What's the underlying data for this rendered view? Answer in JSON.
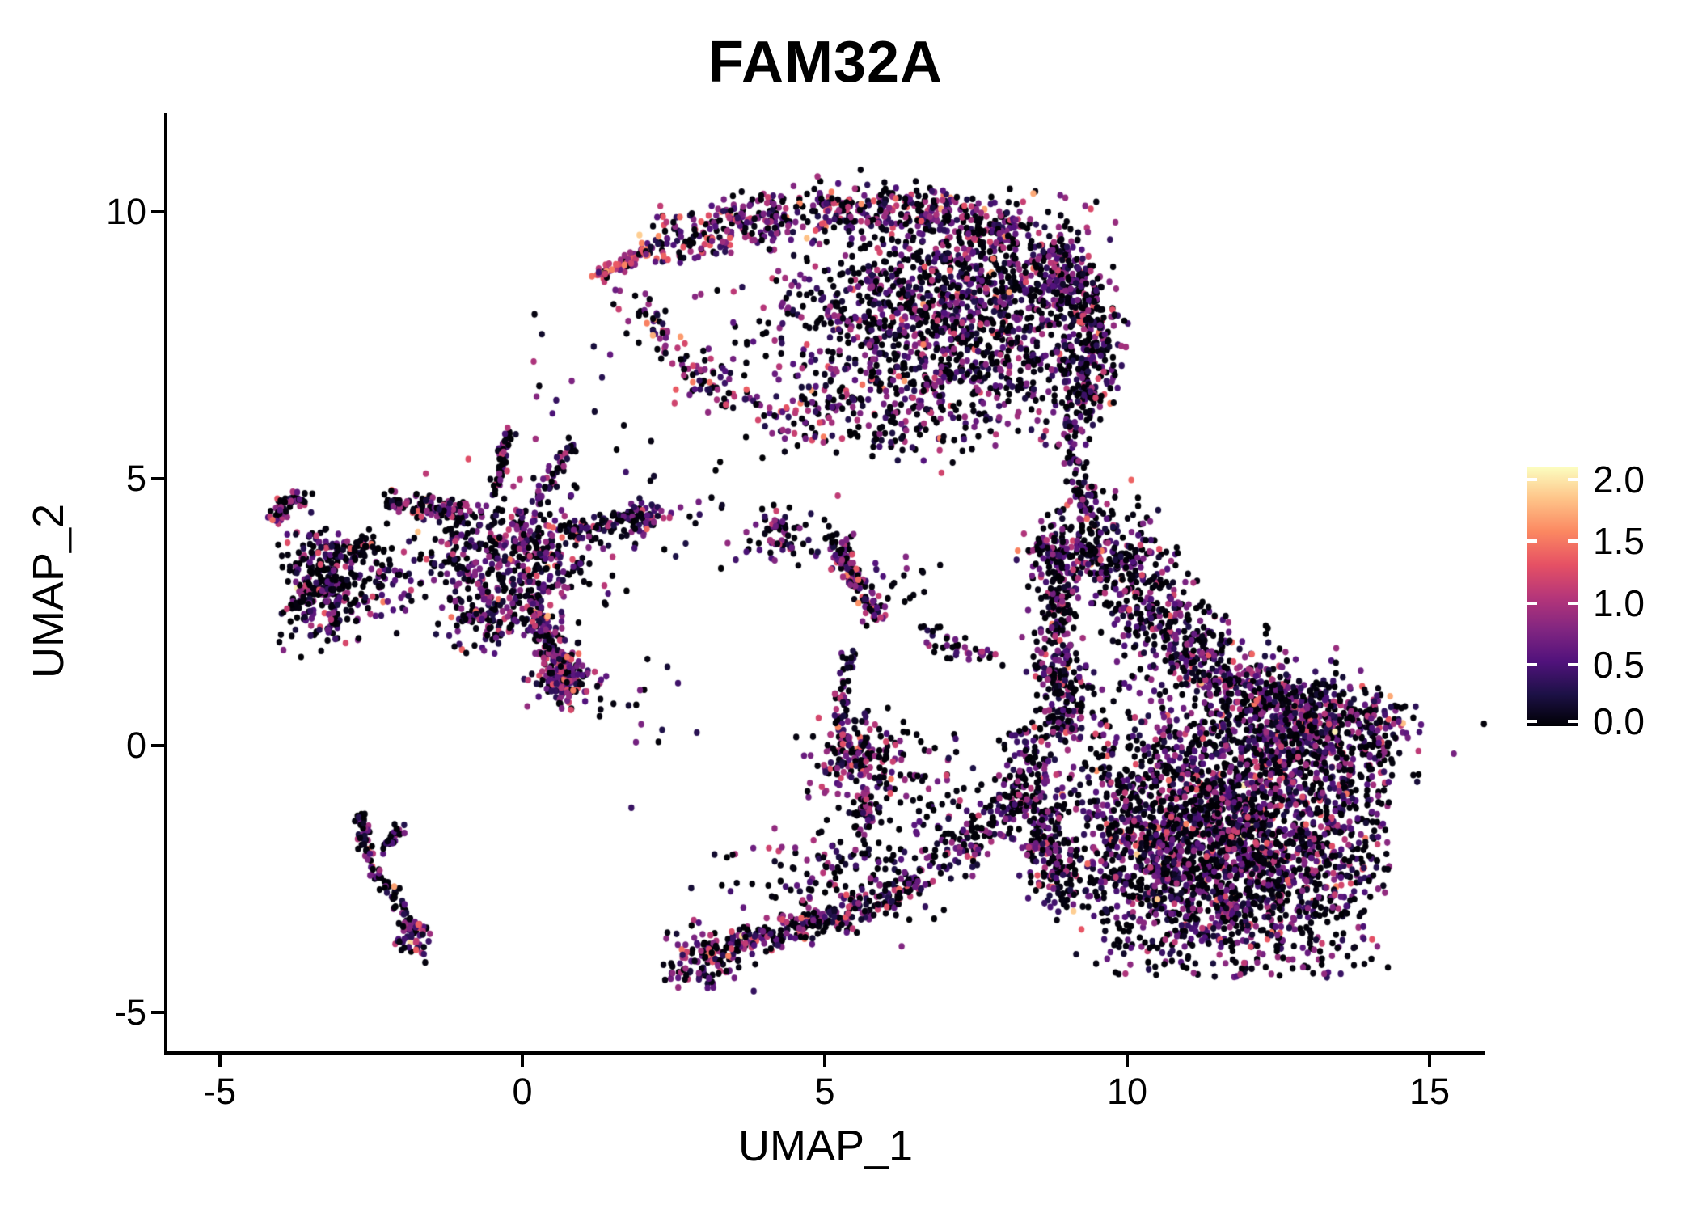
{
  "title": "FAM32A",
  "axes": {
    "x_label": "UMAP_1",
    "y_label": "UMAP_2",
    "x_ticks": [
      {
        "label": "-5",
        "value": -5
      },
      {
        "label": "0",
        "value": 0
      },
      {
        "label": "5",
        "value": 5
      },
      {
        "label": "10",
        "value": 10
      },
      {
        "label": "15",
        "value": 15
      }
    ],
    "y_ticks": [
      {
        "label": "10",
        "value": 10
      },
      {
        "label": "5",
        "value": 5
      },
      {
        "label": "0",
        "value": 0
      },
      {
        "label": "-5",
        "value": -5
      }
    ],
    "axis_color": "#000000",
    "text_color": "#000000",
    "background": "#ffffff"
  },
  "colorbar": {
    "ticks": [
      {
        "label": "2.0",
        "value": 2.0
      },
      {
        "label": "1.5",
        "value": 1.5
      },
      {
        "label": "1.0",
        "value": 1.0
      },
      {
        "label": "0.5",
        "value": 0.5
      },
      {
        "label": "0.0",
        "value": 0.0
      }
    ],
    "value_max": 2.1,
    "palette_name": "magma",
    "stops": [
      [
        0.0,
        "#000004"
      ],
      [
        0.125,
        "#1d1147"
      ],
      [
        0.25,
        "#51127c"
      ],
      [
        0.375,
        "#822681"
      ],
      [
        0.5,
        "#b63679"
      ],
      [
        0.625,
        "#e65164"
      ],
      [
        0.75,
        "#fb8761"
      ],
      [
        0.875,
        "#fec287"
      ],
      [
        1.0,
        "#fcfdbf"
      ]
    ]
  },
  "chart_data": {
    "type": "scatter",
    "title": "FAM32A",
    "xlabel": "UMAP_1",
    "ylabel": "UMAP_2",
    "xlim": [
      -5.9,
      15.9
    ],
    "ylim": [
      -5.8,
      11.8
    ],
    "grid": false,
    "legend_position": "right-colorbar",
    "color_variable": "FAM32A expression",
    "color_range": [
      0.0,
      2.1
    ],
    "point_radius_px": 3.7,
    "seed": 42,
    "clusters": [
      {
        "name": "arc-tip",
        "type": "streak",
        "pts": [
          [
            1.25,
            8.8
          ],
          [
            1.7,
            9.05
          ],
          [
            2.15,
            9.3
          ]
        ],
        "w": 0.13,
        "n": 70,
        "p0": 0.1,
        "mu": 1.15,
        "sg": 0.33,
        "hi": 0.01
      },
      {
        "name": "arc-band",
        "type": "streak",
        "pts": [
          [
            2.15,
            9.3
          ],
          [
            3.4,
            9.75
          ],
          [
            5.2,
            10.05
          ],
          [
            6.8,
            10.05
          ],
          [
            8.2,
            9.55
          ]
        ],
        "w": 0.5,
        "n": 520,
        "p0": 0.33,
        "mu": 0.72,
        "sg": 0.42
      },
      {
        "name": "arc-main",
        "type": "gauss",
        "c": [
          7.25,
          8.1
        ],
        "s": [
          1.35,
          1.15
        ],
        "clip": [
          4.2,
          9.85,
          5.5,
          10.45
        ],
        "n": 1500,
        "p0": 0.4,
        "mu": 0.62,
        "sg": 0.38
      },
      {
        "name": "arc-right-edge",
        "type": "streak",
        "pts": [
          [
            8.6,
            9.4
          ],
          [
            9.3,
            8.4
          ],
          [
            9.55,
            7.2
          ],
          [
            9.2,
            6.2
          ]
        ],
        "w": 0.45,
        "n": 330,
        "p0": 0.42,
        "mu": 0.6,
        "sg": 0.38
      },
      {
        "name": "arc-inner-trail",
        "type": "streak",
        "pts": [
          [
            1.8,
            8.5
          ],
          [
            2.4,
            7.6
          ],
          [
            3.1,
            6.7
          ],
          [
            4.2,
            6.2
          ],
          [
            5.3,
            6.0
          ]
        ],
        "w": 0.42,
        "n": 150,
        "p0": 0.3,
        "mu": 0.8,
        "sg": 0.45
      },
      {
        "name": "arc-hollow-sparse",
        "type": "gauss",
        "c": [
          4.3,
          7.9
        ],
        "s": [
          0.75,
          0.65
        ],
        "n": 55,
        "p0": 0.45,
        "mu": 0.7,
        "sg": 0.4
      },
      {
        "name": "arc-below-sparse",
        "type": "gauss",
        "c": [
          6.4,
          6.3
        ],
        "s": [
          1.0,
          0.5
        ],
        "n": 120,
        "p0": 0.45,
        "mu": 0.6,
        "sg": 0.4
      },
      {
        "name": "right-arm",
        "type": "streak",
        "pts": [
          [
            9.05,
            6.1
          ],
          [
            9.15,
            5.2
          ],
          [
            9.25,
            4.4
          ]
        ],
        "w": 0.18,
        "n": 70,
        "p0": 0.45,
        "mu": 0.55,
        "sg": 0.35
      },
      {
        "name": "right-upper-diag",
        "type": "streak",
        "pts": [
          [
            9.2,
            4.3
          ],
          [
            9.9,
            3.3
          ],
          [
            10.5,
            2.4
          ],
          [
            11.3,
            1.5
          ],
          [
            12.3,
            0.85
          ],
          [
            13.3,
            0.45
          ]
        ],
        "w": 0.8,
        "n": 900,
        "p0": 0.42,
        "mu": 0.6,
        "sg": 0.38
      },
      {
        "name": "right-left-band",
        "type": "streak",
        "pts": [
          [
            8.75,
            4.0
          ],
          [
            8.8,
            2.7
          ],
          [
            8.9,
            1.4
          ],
          [
            9.0,
            0.2
          ]
        ],
        "w": 0.45,
        "n": 380,
        "p0": 0.45,
        "mu": 0.6,
        "sg": 0.38
      },
      {
        "name": "right-core",
        "type": "gauss",
        "c": [
          11.6,
          -1.7
        ],
        "s": [
          1.5,
          1.25
        ],
        "clip": [
          8.8,
          14.35,
          -4.35,
          1.2
        ],
        "n": 2700,
        "p0": 0.44,
        "mu": 0.6,
        "sg": 0.4,
        "hi": 0.002
      },
      {
        "name": "right-ne",
        "type": "gauss",
        "c": [
          13.1,
          0.0
        ],
        "s": [
          0.8,
          0.55
        ],
        "n": 330,
        "p0": 0.45,
        "mu": 0.6,
        "sg": 0.38
      },
      {
        "name": "east-knob",
        "type": "gauss",
        "c": [
          14.1,
          0.45
        ],
        "s": [
          0.3,
          0.3
        ],
        "n": 80,
        "p0": 0.42,
        "mu": 0.65,
        "sg": 0.4
      },
      {
        "name": "west-band",
        "type": "streak",
        "pts": [
          [
            8.45,
            0.3
          ],
          [
            8.4,
            -0.8
          ],
          [
            8.6,
            -1.9
          ],
          [
            8.9,
            -2.9
          ]
        ],
        "w": 0.4,
        "n": 260,
        "p0": 0.45,
        "mu": 0.6,
        "sg": 0.38
      },
      {
        "name": "sw-bridge",
        "type": "streak",
        "pts": [
          [
            6.9,
            -2.1
          ],
          [
            7.7,
            -1.5
          ],
          [
            8.3,
            -0.8
          ]
        ],
        "w": 0.5,
        "n": 160,
        "p0": 0.44,
        "mu": 0.6,
        "sg": 0.38
      },
      {
        "name": "mid-knot",
        "type": "gauss",
        "c": [
          4.35,
          3.95
        ],
        "s": [
          0.3,
          0.22
        ],
        "n": 70,
        "p0": 0.36,
        "mu": 0.62,
        "sg": 0.4
      },
      {
        "name": "mid-streak",
        "type": "streak",
        "pts": [
          [
            5.15,
            3.95
          ],
          [
            5.5,
            3.1
          ],
          [
            5.85,
            2.35
          ]
        ],
        "w": 0.22,
        "n": 130,
        "p0": 0.33,
        "mu": 0.7,
        "sg": 0.4
      },
      {
        "name": "mid-pair",
        "type": "gauss",
        "c": [
          6.1,
          3.1
        ],
        "s": [
          0.4,
          0.3
        ],
        "n": 18,
        "p0": 0.5,
        "mu": 0.55,
        "sg": 0.35
      },
      {
        "name": "chain-arc",
        "type": "streak",
        "pts": [
          [
            6.6,
            2.2
          ],
          [
            7.2,
            1.75
          ],
          [
            7.85,
            1.5
          ]
        ],
        "w": 0.25,
        "n": 40,
        "p0": 0.5,
        "mu": 0.55,
        "sg": 0.35
      },
      {
        "name": "knot-low",
        "type": "gauss",
        "c": [
          5.55,
          -0.2
        ],
        "s": [
          0.33,
          0.38
        ],
        "n": 170,
        "p0": 0.28,
        "mu": 0.75,
        "sg": 0.42,
        "hi": 0.012
      },
      {
        "name": "knot-up-tail",
        "type": "streak",
        "pts": [
          [
            5.25,
            0.4
          ],
          [
            5.3,
            1.1
          ],
          [
            5.45,
            1.7
          ]
        ],
        "w": 0.15,
        "n": 45,
        "p0": 0.45,
        "mu": 0.6,
        "sg": 0.38
      },
      {
        "name": "knot-down-tail",
        "type": "streak",
        "pts": [
          [
            5.6,
            -0.8
          ],
          [
            5.75,
            -1.5
          ]
        ],
        "w": 0.18,
        "n": 40,
        "p0": 0.45,
        "mu": 0.6,
        "sg": 0.38
      },
      {
        "name": "sw-mid-scatter",
        "type": "gauss",
        "c": [
          6.6,
          -0.9
        ],
        "s": [
          0.7,
          0.7
        ],
        "n": 90,
        "p0": 0.5,
        "mu": 0.55,
        "sg": 0.35
      },
      {
        "name": "tail-knot",
        "type": "gauss",
        "c": [
          2.95,
          -4.05
        ],
        "s": [
          0.3,
          0.28
        ],
        "n": 110,
        "p0": 0.33,
        "mu": 0.7,
        "sg": 0.4
      },
      {
        "name": "tail-streak",
        "type": "streak",
        "pts": [
          [
            3.2,
            -3.9
          ],
          [
            4.1,
            -3.55
          ],
          [
            5.0,
            -3.3
          ],
          [
            5.9,
            -2.95
          ],
          [
            6.6,
            -2.45
          ]
        ],
        "w": 0.3,
        "n": 300,
        "p0": 0.38,
        "mu": 0.65,
        "sg": 0.4
      },
      {
        "name": "tail-upper-scatter",
        "type": "gauss",
        "c": [
          5.2,
          -2.35
        ],
        "s": [
          0.8,
          0.5
        ],
        "n": 130,
        "p0": 0.45,
        "mu": 0.6,
        "sg": 0.38
      },
      {
        "name": "ltail-fork-a",
        "type": "streak",
        "pts": [
          [
            -2.72,
            -1.15
          ],
          [
            -2.65,
            -1.75
          ],
          [
            -2.5,
            -2.2
          ]
        ],
        "w": 0.12,
        "n": 45,
        "p0": 0.42,
        "mu": 0.6,
        "sg": 0.38
      },
      {
        "name": "ltail-fork-b",
        "type": "streak",
        "pts": [
          [
            -2.0,
            -1.5
          ],
          [
            -2.35,
            -2.0
          ]
        ],
        "w": 0.1,
        "n": 25,
        "p0": 0.45,
        "mu": 0.6,
        "sg": 0.38
      },
      {
        "name": "ltail-main",
        "type": "streak",
        "pts": [
          [
            -2.45,
            -2.3
          ],
          [
            -2.1,
            -2.9
          ],
          [
            -1.85,
            -3.5
          ]
        ],
        "w": 0.13,
        "n": 55,
        "p0": 0.4,
        "mu": 0.65,
        "sg": 0.38
      },
      {
        "name": "ltail-tip",
        "type": "gauss",
        "c": [
          -1.78,
          -3.62
        ],
        "s": [
          0.16,
          0.18
        ],
        "n": 45,
        "p0": 0.28,
        "mu": 0.75,
        "sg": 0.45,
        "hi": 0.02
      },
      {
        "name": "spider-left-arm",
        "type": "streak",
        "pts": [
          [
            -2.25,
            4.55
          ],
          [
            -1.5,
            4.5
          ],
          [
            -0.9,
            4.35
          ]
        ],
        "w": 0.22,
        "n": 110,
        "p0": 0.33,
        "mu": 0.7,
        "sg": 0.42
      },
      {
        "name": "spider-antenna-a",
        "type": "streak",
        "pts": [
          [
            -0.45,
            4.8
          ],
          [
            -0.3,
            5.5
          ],
          [
            -0.2,
            5.95
          ]
        ],
        "w": 0.12,
        "n": 50,
        "p0": 0.45,
        "mu": 0.6,
        "sg": 0.38
      },
      {
        "name": "spider-antenna-b",
        "type": "streak",
        "pts": [
          [
            0.25,
            4.55
          ],
          [
            0.6,
            5.2
          ],
          [
            0.85,
            5.7
          ]
        ],
        "w": 0.12,
        "n": 45,
        "p0": 0.45,
        "mu": 0.6,
        "sg": 0.38
      },
      {
        "name": "spider-core",
        "type": "gauss",
        "c": [
          -0.2,
          3.55
        ],
        "s": [
          0.75,
          0.6
        ],
        "n": 480,
        "p0": 0.42,
        "mu": 0.6,
        "sg": 0.4
      },
      {
        "name": "spider-right-arm",
        "type": "streak",
        "pts": [
          [
            0.7,
            3.95
          ],
          [
            1.4,
            4.2
          ],
          [
            1.95,
            4.3
          ]
        ],
        "w": 0.2,
        "n": 70,
        "p0": 0.5,
        "mu": 0.55,
        "sg": 0.35
      },
      {
        "name": "spider-knob",
        "type": "gauss",
        "c": [
          2.0,
          4.25
        ],
        "s": [
          0.18,
          0.18
        ],
        "n": 45,
        "p0": 0.33,
        "mu": 0.7,
        "sg": 0.4
      },
      {
        "name": "spider-tail",
        "type": "streak",
        "pts": [
          [
            0.1,
            2.85
          ],
          [
            0.35,
            2.2
          ],
          [
            0.6,
            1.6
          ],
          [
            0.75,
            1.2
          ]
        ],
        "w": 0.24,
        "n": 170,
        "p0": 0.38,
        "mu": 0.68,
        "sg": 0.4
      },
      {
        "name": "spider-tail-knot",
        "type": "gauss",
        "c": [
          0.68,
          1.3
        ],
        "s": [
          0.22,
          0.25
        ],
        "n": 150,
        "p0": 0.24,
        "mu": 0.72,
        "sg": 0.35,
        "hi": 0.006
      },
      {
        "name": "spider-west-knot",
        "type": "gauss",
        "c": [
          -0.6,
          2.35
        ],
        "s": [
          0.3,
          0.25
        ],
        "n": 90,
        "p0": 0.45,
        "mu": 0.6,
        "sg": 0.38
      },
      {
        "name": "farleft-hook",
        "type": "streak",
        "pts": [
          [
            -4.1,
            4.2
          ],
          [
            -3.95,
            4.55
          ],
          [
            -3.6,
            4.6
          ]
        ],
        "w": 0.15,
        "n": 55,
        "p0": 0.38,
        "mu": 0.7,
        "sg": 0.4
      },
      {
        "name": "farleft-mass",
        "type": "gauss",
        "c": [
          -3.25,
          2.95
        ],
        "s": [
          0.38,
          0.5
        ],
        "n": 300,
        "p0": 0.45,
        "mu": 0.6,
        "sg": 0.42
      },
      {
        "name": "farleft-bridge",
        "type": "streak",
        "pts": [
          [
            -3.5,
            3.9
          ],
          [
            -2.9,
            3.6
          ],
          [
            -2.45,
            3.8
          ]
        ],
        "w": 0.25,
        "n": 70,
        "p0": 0.45,
        "mu": 0.6,
        "sg": 0.38
      },
      {
        "name": "farleft-east-dots",
        "type": "gauss",
        "c": [
          -2.2,
          3.2
        ],
        "s": [
          0.3,
          0.4
        ],
        "n": 40,
        "p0": 0.5,
        "mu": 0.55,
        "sg": 0.35
      },
      {
        "name": "sparse-arc-spider",
        "type": "gauss",
        "c": [
          1.0,
          6.8
        ],
        "s": [
          0.8,
          0.8
        ],
        "n": 18,
        "p0": 0.5,
        "mu": 0.5,
        "sg": 0.35
      },
      {
        "name": "sparse-midgap",
        "type": "gauss",
        "c": [
          2.9,
          4.2
        ],
        "s": [
          0.7,
          0.6
        ],
        "n": 22,
        "p0": 0.5,
        "mu": 0.55,
        "sg": 0.35
      },
      {
        "name": "sparse-below-spider",
        "type": "gauss",
        "c": [
          1.6,
          0.6
        ],
        "s": [
          0.7,
          0.6
        ],
        "n": 20,
        "p0": 0.5,
        "mu": 0.5,
        "sg": 0.35
      }
    ]
  }
}
